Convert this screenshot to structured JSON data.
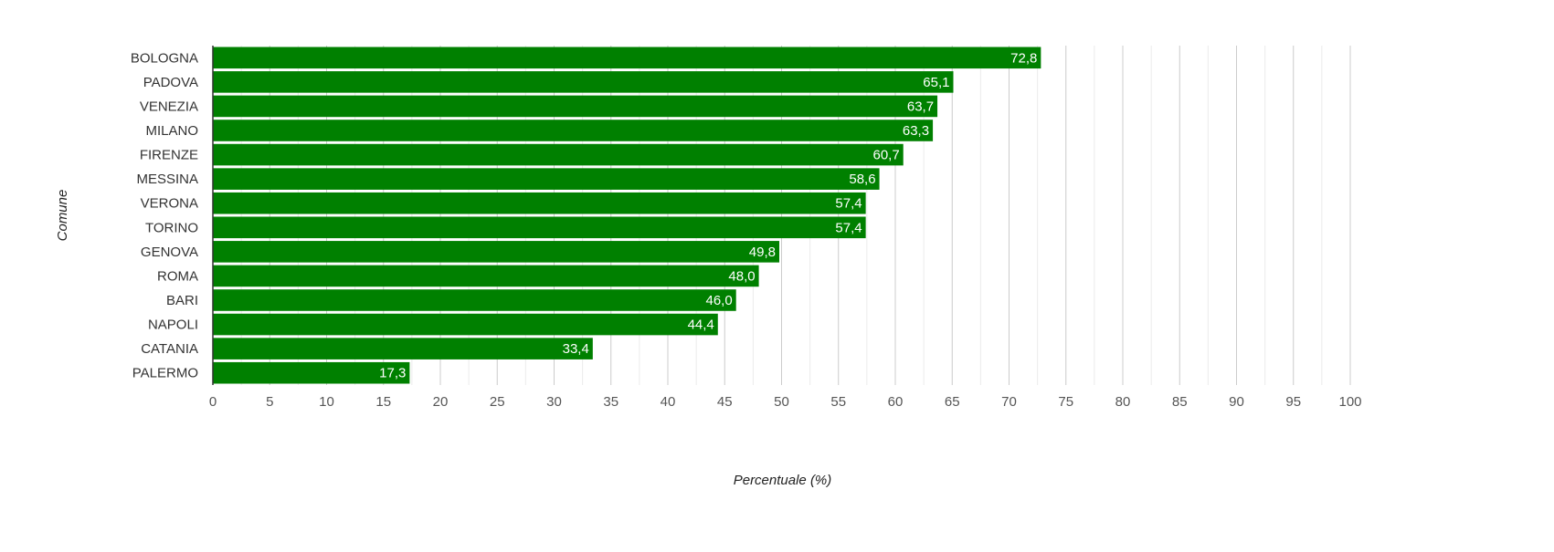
{
  "chart_data": {
    "type": "bar",
    "orientation": "horizontal",
    "categories": [
      "BOLOGNA",
      "PADOVA",
      "VENEZIA",
      "MILANO",
      "FIRENZE",
      "MESSINA",
      "VERONA",
      "TORINO",
      "GENOVA",
      "ROMA",
      "BARI",
      "NAPOLI",
      "CATANIA",
      "PALERMO"
    ],
    "values": [
      72.8,
      65.1,
      63.7,
      63.3,
      60.7,
      58.6,
      57.4,
      57.4,
      49.8,
      48.0,
      46.0,
      44.4,
      33.4,
      17.3
    ],
    "value_labels": [
      "72,8",
      "65,1",
      "63,7",
      "63,3",
      "60,7",
      "58,6",
      "57,4",
      "57,4",
      "49,8",
      "48,0",
      "46,0",
      "44,4",
      "33,4",
      "17,3"
    ],
    "title": "",
    "xlabel": "Percentuale (%)",
    "ylabel": "Comune",
    "xlim": [
      0,
      100
    ],
    "xticks": [
      0,
      5,
      10,
      15,
      20,
      25,
      30,
      35,
      40,
      45,
      50,
      55,
      60,
      65,
      70,
      75,
      80,
      85,
      90,
      95,
      100
    ],
    "grid": true,
    "legend": "none",
    "colors": {
      "bar": "#008000",
      "value_text": "#ffffff",
      "major_grid": "#cccccc",
      "minor_grid": "#ebebeb",
      "axis": "#333333"
    }
  }
}
